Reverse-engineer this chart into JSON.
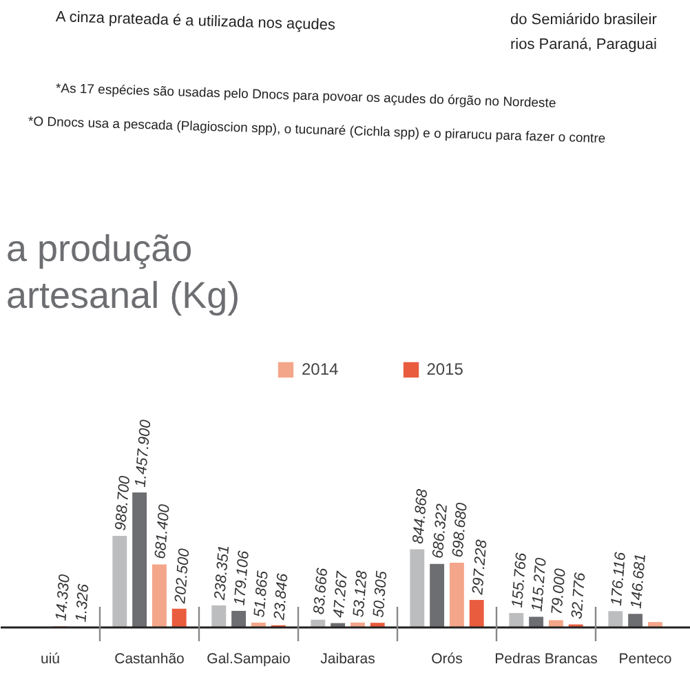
{
  "chart_data": {
    "type": "bar",
    "title": "a produção\nartesanal (Kg)",
    "annotations": [
      "A cinza prateada é a utilizada nos açudes",
      "do Semiárido brasileir",
      "rios Paraná, Paraguai",
      "*As 17 espécies são usadas pelo Dnocs para povoar os açudes do órgão no Nordeste",
      "*O Dnocs usa a pescada (Plagioscion spp), o tucunaré (Cichla spp) e o pirarucu para fazer o contre"
    ],
    "categories": [
      "uiú",
      "Castanhão",
      "Gal.Sampaio",
      "Jaibaras",
      "Orós",
      "Pedras Brancas",
      "Penteco"
    ],
    "series": [
      {
        "color": "#bcbdbf",
        "values": [
          null,
          988700,
          238351,
          83666,
          844868,
          155766,
          176116
        ],
        "value_labels": [
          null,
          "988.700",
          "238.351",
          "83.666",
          "844.868",
          "155.766",
          "176.116"
        ]
      },
      {
        "color": "#6d6e71",
        "values": [
          null,
          1457900,
          179106,
          47267,
          686322,
          115270,
          146681
        ],
        "value_labels": [
          null,
          "1.457.900",
          "179.106",
          "47.267",
          "686.322",
          "115.270",
          "146.681"
        ]
      },
      {
        "name": "2014",
        "color": "#f4a68a",
        "values": [
          14330,
          681400,
          51865,
          53128,
          698680,
          79000,
          58480
        ],
        "value_labels": [
          "14.330",
          "681.400",
          "51.865",
          "53.128",
          "698.680",
          "79.000",
          null
        ]
      },
      {
        "name": "2015",
        "color": "#e95c3e",
        "values": [
          1326,
          202500,
          23846,
          50305,
          297228,
          32776,
          null
        ],
        "value_labels": [
          "1.326",
          "202.500",
          "23.846",
          "50.305",
          "297.228",
          "32.776",
          null
        ]
      }
    ],
    "legend": "top",
    "grid": false
  }
}
